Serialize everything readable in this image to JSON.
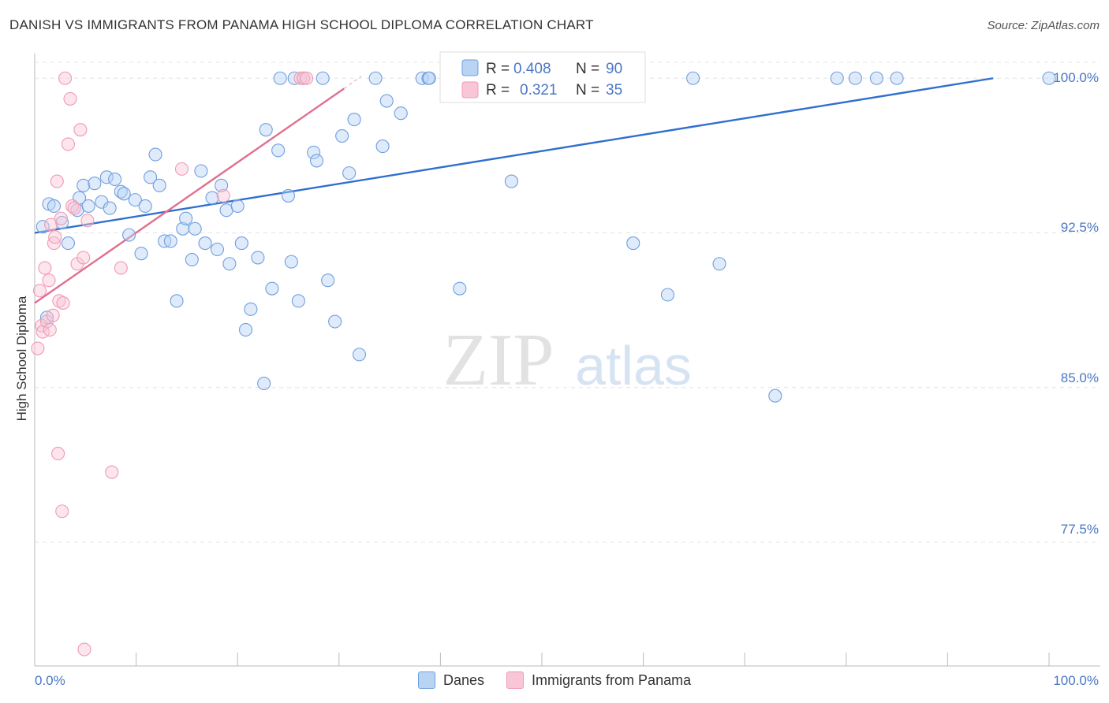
{
  "title": "DANISH VS IMMIGRANTS FROM PANAMA HIGH SCHOOL DIPLOMA CORRELATION CHART",
  "source": "Source: ZipAtlas.com",
  "watermark": {
    "zip": "ZIP",
    "atlas": "atlas"
  },
  "legend": {
    "r_label": "R =",
    "n_label": "N =",
    "series": [
      {
        "r": "0.408",
        "n": "90"
      },
      {
        "r": "0.321",
        "n": "35"
      }
    ]
  },
  "bottom_legend": {
    "danes": "Danes",
    "panama": "Immigrants from Panama"
  },
  "chart_data": {
    "type": "scatter",
    "title": "DANISH VS IMMIGRANTS FROM PANAMA HIGH SCHOOL DIPLOMA CORRELATION CHART",
    "xlabel": "",
    "ylabel": "High School Diploma",
    "xlim": [
      0,
      100
    ],
    "ylim": [
      71.5,
      101.5
    ],
    "x_tick_labels": [
      "0.0%",
      "100.0%"
    ],
    "y_ticks": [
      77.5,
      85.0,
      92.5,
      100.0
    ],
    "y_tick_labels": [
      "77.5%",
      "85.0%",
      "92.5%",
      "100.0%"
    ],
    "grid": true,
    "legend_position": "top-center",
    "colors": {
      "danes": "#6f9fde",
      "danes_line": "#2f6fcf",
      "panama": "#f09ab5",
      "panama_line": "#e0708f",
      "tick": "#4a77c4"
    },
    "series": [
      {
        "name": "Danes",
        "trend": {
          "x": [
            0,
            94.5
          ],
          "y": [
            92.5,
            100.0
          ]
        },
        "points": [
          [
            0.8,
            92.8
          ],
          [
            1.2,
            88.4
          ],
          [
            1.4,
            93.9
          ],
          [
            1.9,
            93.8
          ],
          [
            2.7,
            93.0
          ],
          [
            3.3,
            92.0
          ],
          [
            4.2,
            93.6
          ],
          [
            4.4,
            94.2
          ],
          [
            4.8,
            94.8
          ],
          [
            5.3,
            93.8
          ],
          [
            5.9,
            94.9
          ],
          [
            6.6,
            94.0
          ],
          [
            7.1,
            95.2
          ],
          [
            7.4,
            93.7
          ],
          [
            7.9,
            95.1
          ],
          [
            8.5,
            94.5
          ],
          [
            8.8,
            94.4
          ],
          [
            9.3,
            92.4
          ],
          [
            9.9,
            94.1
          ],
          [
            10.5,
            91.5
          ],
          [
            10.9,
            93.8
          ],
          [
            11.4,
            95.2
          ],
          [
            11.9,
            96.3
          ],
          [
            12.3,
            94.8
          ],
          [
            12.8,
            92.1
          ],
          [
            13.4,
            92.1
          ],
          [
            14.0,
            89.2
          ],
          [
            14.6,
            92.7
          ],
          [
            14.9,
            93.2
          ],
          [
            15.5,
            91.2
          ],
          [
            15.8,
            92.7
          ],
          [
            16.4,
            95.5
          ],
          [
            16.8,
            92.0
          ],
          [
            17.5,
            94.2
          ],
          [
            18.0,
            91.7
          ],
          [
            18.4,
            94.8
          ],
          [
            18.9,
            93.6
          ],
          [
            19.2,
            91.0
          ],
          [
            20.0,
            93.8
          ],
          [
            20.4,
            92.0
          ],
          [
            20.8,
            87.8
          ],
          [
            21.3,
            88.8
          ],
          [
            22.0,
            91.3
          ],
          [
            22.6,
            85.2
          ],
          [
            22.8,
            97.5
          ],
          [
            23.4,
            89.8
          ],
          [
            24.0,
            96.5
          ],
          [
            24.2,
            100.0
          ],
          [
            25.0,
            94.3
          ],
          [
            25.3,
            91.1
          ],
          [
            25.6,
            100.0
          ],
          [
            26.0,
            89.2
          ],
          [
            26.5,
            100.0
          ],
          [
            27.5,
            96.4
          ],
          [
            27.8,
            96.0
          ],
          [
            28.4,
            100.0
          ],
          [
            28.9,
            90.2
          ],
          [
            29.6,
            88.2
          ],
          [
            30.3,
            97.2
          ],
          [
            31.0,
            95.4
          ],
          [
            31.5,
            98.0
          ],
          [
            32.0,
            86.6
          ],
          [
            33.6,
            100.0
          ],
          [
            34.3,
            96.7
          ],
          [
            34.7,
            98.9
          ],
          [
            36.1,
            98.3
          ],
          [
            38.2,
            100.0
          ],
          [
            38.8,
            100.0
          ],
          [
            38.9,
            100.0
          ],
          [
            41.9,
            89.8
          ],
          [
            45.4,
            100.0
          ],
          [
            47.4,
            100.0
          ],
          [
            48.5,
            100.0
          ],
          [
            47.0,
            95.0
          ],
          [
            49.2,
            100.0
          ],
          [
            51.3,
            100.0
          ],
          [
            52.0,
            100.0
          ],
          [
            53.7,
            100.0
          ],
          [
            55.1,
            100.0
          ],
          [
            56.8,
            100.0
          ],
          [
            59.0,
            92.0
          ],
          [
            62.4,
            89.5
          ],
          [
            64.9,
            100.0
          ],
          [
            67.5,
            91.0
          ],
          [
            73.0,
            84.6
          ],
          [
            79.1,
            100.0
          ],
          [
            80.9,
            100.0
          ],
          [
            83.0,
            100.0
          ],
          [
            85.0,
            100.0
          ],
          [
            100.0,
            100.0
          ]
        ]
      },
      {
        "name": "Immigrants from Panama",
        "trend": {
          "x": [
            0,
            30.5
          ],
          "y": [
            89.1,
            99.5
          ]
        },
        "points": [
          [
            0.3,
            86.9
          ],
          [
            0.5,
            89.7
          ],
          [
            0.7,
            88.0
          ],
          [
            0.8,
            87.7
          ],
          [
            1.0,
            90.8
          ],
          [
            1.2,
            88.2
          ],
          [
            1.4,
            90.2
          ],
          [
            1.5,
            87.8
          ],
          [
            1.6,
            92.9
          ],
          [
            1.8,
            88.5
          ],
          [
            1.9,
            92.0
          ],
          [
            2.0,
            92.3
          ],
          [
            2.2,
            95.0
          ],
          [
            2.3,
            81.8
          ],
          [
            2.4,
            89.2
          ],
          [
            2.6,
            93.2
          ],
          [
            2.7,
            79.0
          ],
          [
            2.8,
            89.1
          ],
          [
            3.0,
            100.0
          ],
          [
            3.3,
            96.8
          ],
          [
            3.5,
            99.0
          ],
          [
            3.7,
            93.8
          ],
          [
            3.9,
            93.7
          ],
          [
            4.2,
            91.0
          ],
          [
            4.5,
            97.5
          ],
          [
            4.8,
            91.3
          ],
          [
            4.9,
            72.3
          ],
          [
            5.2,
            93.1
          ],
          [
            7.6,
            80.9
          ],
          [
            8.5,
            90.8
          ],
          [
            14.5,
            95.6
          ],
          [
            18.6,
            94.3
          ],
          [
            26.2,
            100.0
          ],
          [
            26.5,
            100.0
          ],
          [
            26.8,
            100.0
          ]
        ]
      }
    ]
  }
}
